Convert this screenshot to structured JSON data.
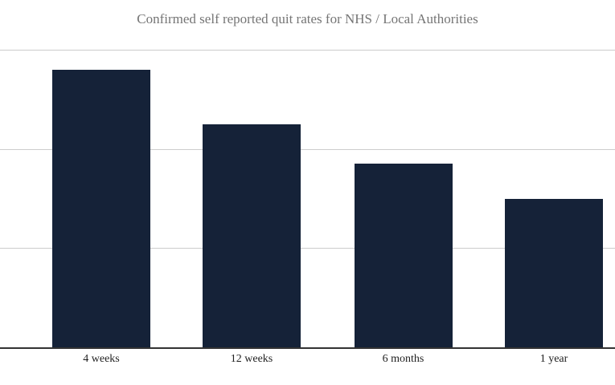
{
  "chart_data": {
    "type": "bar",
    "title": "Confirmed self reported quit rates for NHS / Local Authorities",
    "categories": [
      "4 weeks",
      "12 weeks",
      "6 months",
      "1 year"
    ],
    "values": [
      56,
      45,
      37,
      30
    ],
    "xlabel": "",
    "ylabel": "",
    "ylim": [
      0,
      60
    ],
    "gridline_step": 20,
    "grid": true,
    "y_tick_labels_visible": false,
    "legend_position": "none",
    "colors": {
      "background": "#ffffff",
      "bar": "#152238",
      "gridline": "#cccccc",
      "axis_line": "#333333",
      "title": "#757575",
      "tick_label": "#1f1f1f"
    }
  }
}
